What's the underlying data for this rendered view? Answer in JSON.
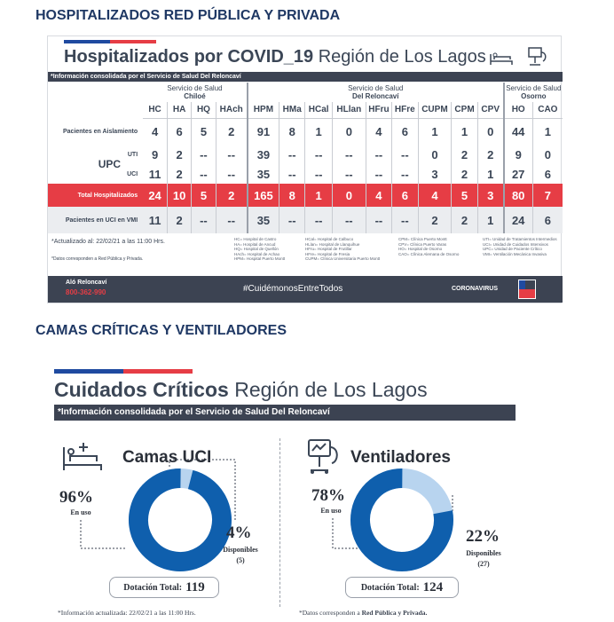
{
  "section1_title": "HOSPITALIZADOS RED PÚBLICA Y PRIVADA",
  "section2_title": "CAMAS CRÍTICAS Y VENTILADORES",
  "hosp": {
    "title_bold": "Hospitalizados por COVID_19",
    "title_rest": " Región de Los Lagos",
    "info_bar": "*Información consolidada por el Servicio de Salud Del Reloncaví",
    "groups": [
      {
        "line1": "Servicio de Salud",
        "line2": "Chiloé"
      },
      {
        "line1": "Servicio de Salud",
        "line2": "Del Reloncaví"
      },
      {
        "line1": "Servicio de Salud",
        "line2": "Osorno"
      }
    ],
    "columns": [
      "HC",
      "HA",
      "HQ",
      "HAch",
      "HPM",
      "HMa",
      "HCal",
      "HLlan",
      "HFru",
      "HFre",
      "CUPM",
      "CPM",
      "CPV",
      "HO",
      "CAO"
    ],
    "rows": [
      {
        "label": "Pacientes en Aislamiento",
        "values": [
          "4",
          "6",
          "5",
          "2",
          "91",
          "8",
          "1",
          "0",
          "4",
          "6",
          "1",
          "1",
          "0",
          "44",
          "1"
        ]
      },
      {
        "label": "UTI",
        "values": [
          "9",
          "2",
          "--",
          "--",
          "39",
          "--",
          "--",
          "--",
          "--",
          "--",
          "0",
          "2",
          "2",
          "9",
          "0"
        ]
      },
      {
        "label": "UCI",
        "values": [
          "11",
          "2",
          "--",
          "--",
          "35",
          "--",
          "--",
          "--",
          "--",
          "--",
          "3",
          "2",
          "1",
          "27",
          "6"
        ]
      },
      {
        "label": "Total Hospitalizados",
        "values": [
          "24",
          "10",
          "5",
          "2",
          "165",
          "8",
          "1",
          "0",
          "4",
          "6",
          "4",
          "5",
          "3",
          "80",
          "7"
        ]
      },
      {
        "label": "Pacientes en UCI en VMI",
        "values": [
          "11",
          "2",
          "--",
          "--",
          "35",
          "--",
          "--",
          "--",
          "--",
          "--",
          "2",
          "2",
          "1",
          "24",
          "6"
        ]
      }
    ],
    "upc_label": "UPC",
    "updated": "*Actualizado al:  22/02/21 a las 11:00 Hrs.",
    "data_note": "*Datos corresponden a Red Pública y Privada.",
    "legend_cols": [
      [
        "HC= Hospital de Castro",
        "HA= Hospital de Ancud",
        "HQ= Hospital de Quellón",
        "HAch= Hospital de Achao",
        "HPM= Hospital Puerto Montt"
      ],
      [
        "HCal= Hospital de Calbuco",
        "HLlan= Hospital de Llanquihue",
        "HFru= Hospital de Frutillar",
        "HFre= Hospital de Fresia",
        "CUPM= Clínica Universitaria Puerto Montt"
      ],
      [
        "CPM= Clínica Puerto Montt",
        "CPV= Clínica Puerto Varas",
        "HO= Hospital de Osorno",
        "CAO= Clínica Alemana de Osorno"
      ],
      [
        "UTI= Unidad de Tratamientos Intermedios",
        "UCI= Unidad de Cuidados Intensivos",
        "UPC= Unidad de Paciente Crítico",
        "VMI= Ventilación Mecánica Invasiva"
      ]
    ],
    "footer_brand": "Aló Reloncaví",
    "footer_phone": "800-362-990",
    "footer_hashtag": "#CuidémonosEntreTodos",
    "footer_right": "CORONAVIRUS"
  },
  "crit": {
    "title_bold": "Cuidados Críticos",
    "title_rest": " Región de Los Lagos",
    "info_bar": "*Información consolidada por el Servicio de Salud Del Reloncaví",
    "uci": {
      "title": "Camas UCI",
      "used_pct": "96%",
      "used_label": "En uso",
      "free_pct": "4%",
      "free_label": "Disponibles",
      "free_count": "(5)",
      "total_label": "Dotación Total:",
      "total": "119",
      "used_fraction": 0.96
    },
    "vent": {
      "title": "Ventiladores",
      "used_pct": "78%",
      "used_label": "En uso",
      "free_pct": "22%",
      "free_label": "Disponibles",
      "free_count": "(27)",
      "total_label": "Dotación Total:",
      "total": "124",
      "used_fraction": 0.78
    },
    "foot_left": "*Información actualizada: 22/02/21 a las 11:00 Hrs.",
    "foot_right_a": "*Datos corresponden a ",
    "foot_right_b": "Red Pública y Privada."
  },
  "colors": {
    "dark": "#3c4352",
    "blue": "#0f5fad",
    "lightblue": "#b8d4ef",
    "red": "#e63d45",
    "navy": "#1f3864"
  }
}
